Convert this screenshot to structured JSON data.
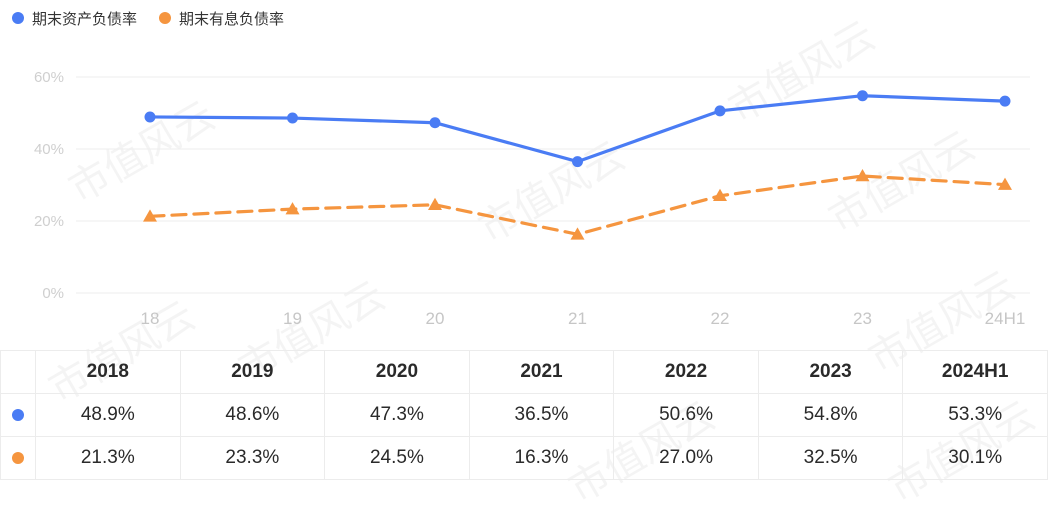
{
  "colors": {
    "asset": "#4a7cf4",
    "interest": "#f5953f",
    "grid": "#eeeeee"
  },
  "watermark_text": "市值风云",
  "chart_data": {
    "type": "line",
    "categories": [
      "18",
      "19",
      "20",
      "21",
      "22",
      "23",
      "24H1"
    ],
    "y_ticks": [
      "0%",
      "20%",
      "40%",
      "60%"
    ],
    "ylim": [
      0,
      60
    ],
    "series": [
      {
        "name": "期末资产负债率",
        "values": [
          48.9,
          48.6,
          47.3,
          36.5,
          50.6,
          54.8,
          53.3
        ],
        "style": "solid",
        "marker": "circle",
        "color": "#4a7cf4"
      },
      {
        "name": "期末有息负债率",
        "values": [
          21.3,
          23.3,
          24.5,
          16.3,
          27.0,
          32.5,
          30.1
        ],
        "style": "dashed",
        "marker": "triangle",
        "color": "#f5953f"
      }
    ]
  },
  "table": {
    "headers": [
      "2018",
      "2019",
      "2020",
      "2021",
      "2022",
      "2023",
      "2024H1"
    ],
    "rows": [
      {
        "color": "#4a7cf4",
        "cells": [
          "48.9%",
          "48.6%",
          "47.3%",
          "36.5%",
          "50.6%",
          "54.8%",
          "53.3%"
        ]
      },
      {
        "color": "#f5953f",
        "cells": [
          "21.3%",
          "23.3%",
          "24.5%",
          "16.3%",
          "27.0%",
          "32.5%",
          "30.1%"
        ]
      }
    ]
  }
}
